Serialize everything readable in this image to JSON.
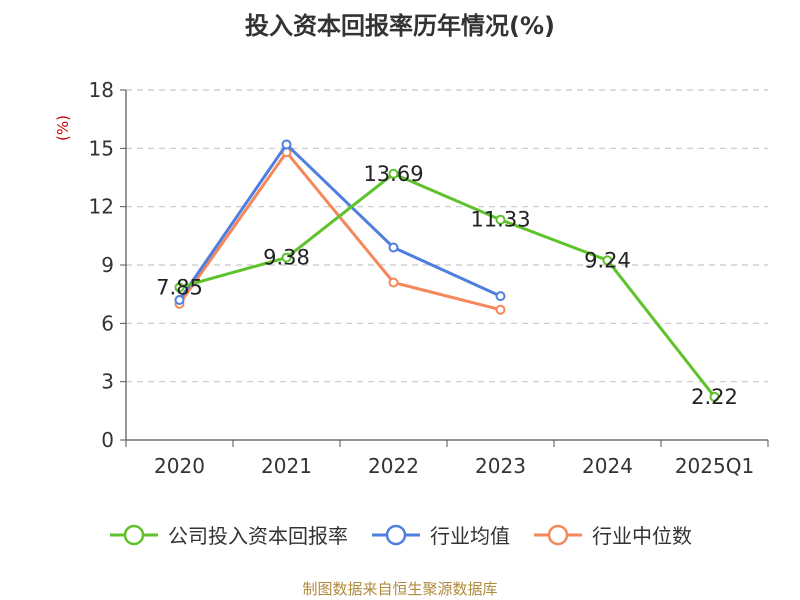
{
  "chart_data": {
    "type": "line",
    "title": "投入资本回报率历年情况(%)",
    "ylabel": "(%)",
    "xlabel": "",
    "categories": [
      "2020",
      "2021",
      "2022",
      "2023",
      "2024",
      "2025Q1"
    ],
    "ylim": [
      0,
      18
    ],
    "yticks": [
      0,
      3,
      6,
      9,
      12,
      15,
      18
    ],
    "grid": "horizontal-dashed",
    "legend_position": "bottom",
    "series": [
      {
        "name": "公司投入资本回报率",
        "color": "#5ec22b",
        "values": [
          7.85,
          9.38,
          13.69,
          11.33,
          9.24,
          2.22
        ],
        "show_labels": true,
        "labels": [
          "7.85",
          "9.38",
          "13.69",
          "11.33",
          "9.24",
          "2.22"
        ]
      },
      {
        "name": "行业均值",
        "color": "#4e7fde",
        "values": [
          7.2,
          15.2,
          9.9,
          7.4,
          null,
          null
        ],
        "show_labels": false
      },
      {
        "name": "行业中位数",
        "color": "#f5875b",
        "values": [
          7.0,
          14.8,
          8.1,
          6.7,
          null,
          null
        ],
        "show_labels": false
      }
    ]
  },
  "footer": {
    "source": "制图数据来自恒生聚源数据库"
  }
}
